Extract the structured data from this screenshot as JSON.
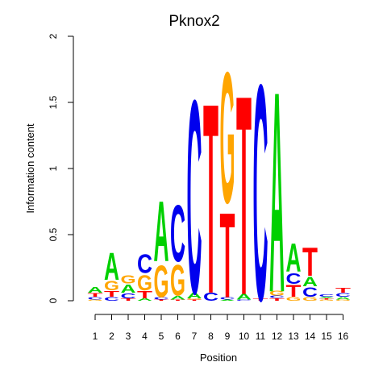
{
  "chart_data": {
    "type": "sequence-logo",
    "title": "Pknox2",
    "xlabel": "Position",
    "ylabel": "Information content",
    "ylim": [
      0,
      2
    ],
    "y_ticks": [
      "0",
      "0.5",
      "1",
      "1.5",
      "2"
    ],
    "y_tick_values": [
      0,
      0.5,
      1,
      1.5,
      2
    ],
    "x_ticks": [
      "1",
      "2",
      "3",
      "4",
      "5",
      "6",
      "7",
      "8",
      "9",
      "10",
      "11",
      "12",
      "13",
      "14",
      "15",
      "16"
    ],
    "base_colors": {
      "A": "#00d000",
      "C": "#0000ee",
      "G": "#ffa500",
      "T": "#ff0000"
    },
    "positions": [
      {
        "position": 1,
        "stack": [
          [
            "G",
            0.01
          ],
          [
            "C",
            0.02
          ],
          [
            "T",
            0.03
          ],
          [
            "A",
            0.05
          ]
        ]
      },
      {
        "position": 2,
        "stack": [
          [
            "C",
            0.03
          ],
          [
            "T",
            0.05
          ],
          [
            "G",
            0.08
          ],
          [
            "A",
            0.23
          ]
        ]
      },
      {
        "position": 3,
        "stack": [
          [
            "T",
            0.02
          ],
          [
            "C",
            0.04
          ],
          [
            "A",
            0.07
          ],
          [
            "G",
            0.07
          ]
        ]
      },
      {
        "position": 4,
        "stack": [
          [
            "A",
            0.02
          ],
          [
            "T",
            0.06
          ],
          [
            "G",
            0.13
          ],
          [
            "C",
            0.16
          ]
        ]
      },
      {
        "position": 5,
        "stack": [
          [
            "T",
            0.01
          ],
          [
            "C",
            0.02
          ],
          [
            "G",
            0.27
          ],
          [
            "A",
            0.51
          ]
        ]
      },
      {
        "position": 6,
        "stack": [
          [
            "T",
            0.01
          ],
          [
            "A",
            0.03
          ],
          [
            "G",
            0.26
          ],
          [
            "C",
            0.48
          ]
        ]
      },
      {
        "position": 7,
        "stack": [
          [
            "T",
            0.01
          ],
          [
            "G",
            0.01
          ],
          [
            "A",
            0.05
          ],
          [
            "C",
            1.64
          ]
        ]
      },
      {
        "position": 8,
        "stack": [
          [
            "C",
            0.07
          ],
          [
            "T",
            1.61
          ]
        ]
      },
      {
        "position": 9,
        "stack": [
          [
            "A",
            0.01
          ],
          [
            "C",
            0.02
          ],
          [
            "T",
            0.72
          ],
          [
            "G",
            1.11
          ]
        ]
      },
      {
        "position": 10,
        "stack": [
          [
            "C",
            0.01
          ],
          [
            "A",
            0.05
          ],
          [
            "T",
            1.69
          ]
        ]
      },
      {
        "position": 11,
        "stack": [
          [
            "T",
            0.02
          ],
          [
            "C",
            1.83
          ]
        ]
      },
      {
        "position": 12,
        "stack": [
          [
            "T",
            0.02
          ],
          [
            "C",
            0.02
          ],
          [
            "G",
            0.04
          ],
          [
            "A",
            1.7
          ]
        ]
      },
      {
        "position": 13,
        "stack": [
          [
            "G",
            0.03
          ],
          [
            "T",
            0.1
          ],
          [
            "C",
            0.09
          ],
          [
            "A",
            0.24
          ]
        ]
      },
      {
        "position": 14,
        "stack": [
          [
            "G",
            0.03
          ],
          [
            "C",
            0.08
          ],
          [
            "A",
            0.08
          ],
          [
            "T",
            0.24
          ]
        ]
      },
      {
        "position": 15,
        "stack": [
          [
            "G",
            0.01
          ],
          [
            "T",
            0.01
          ],
          [
            "A",
            0.01
          ],
          [
            "C",
            0.02
          ]
        ]
      },
      {
        "position": 16,
        "stack": [
          [
            "G",
            0.01
          ],
          [
            "A",
            0.02
          ],
          [
            "C",
            0.03
          ],
          [
            "T",
            0.04
          ]
        ]
      }
    ]
  }
}
